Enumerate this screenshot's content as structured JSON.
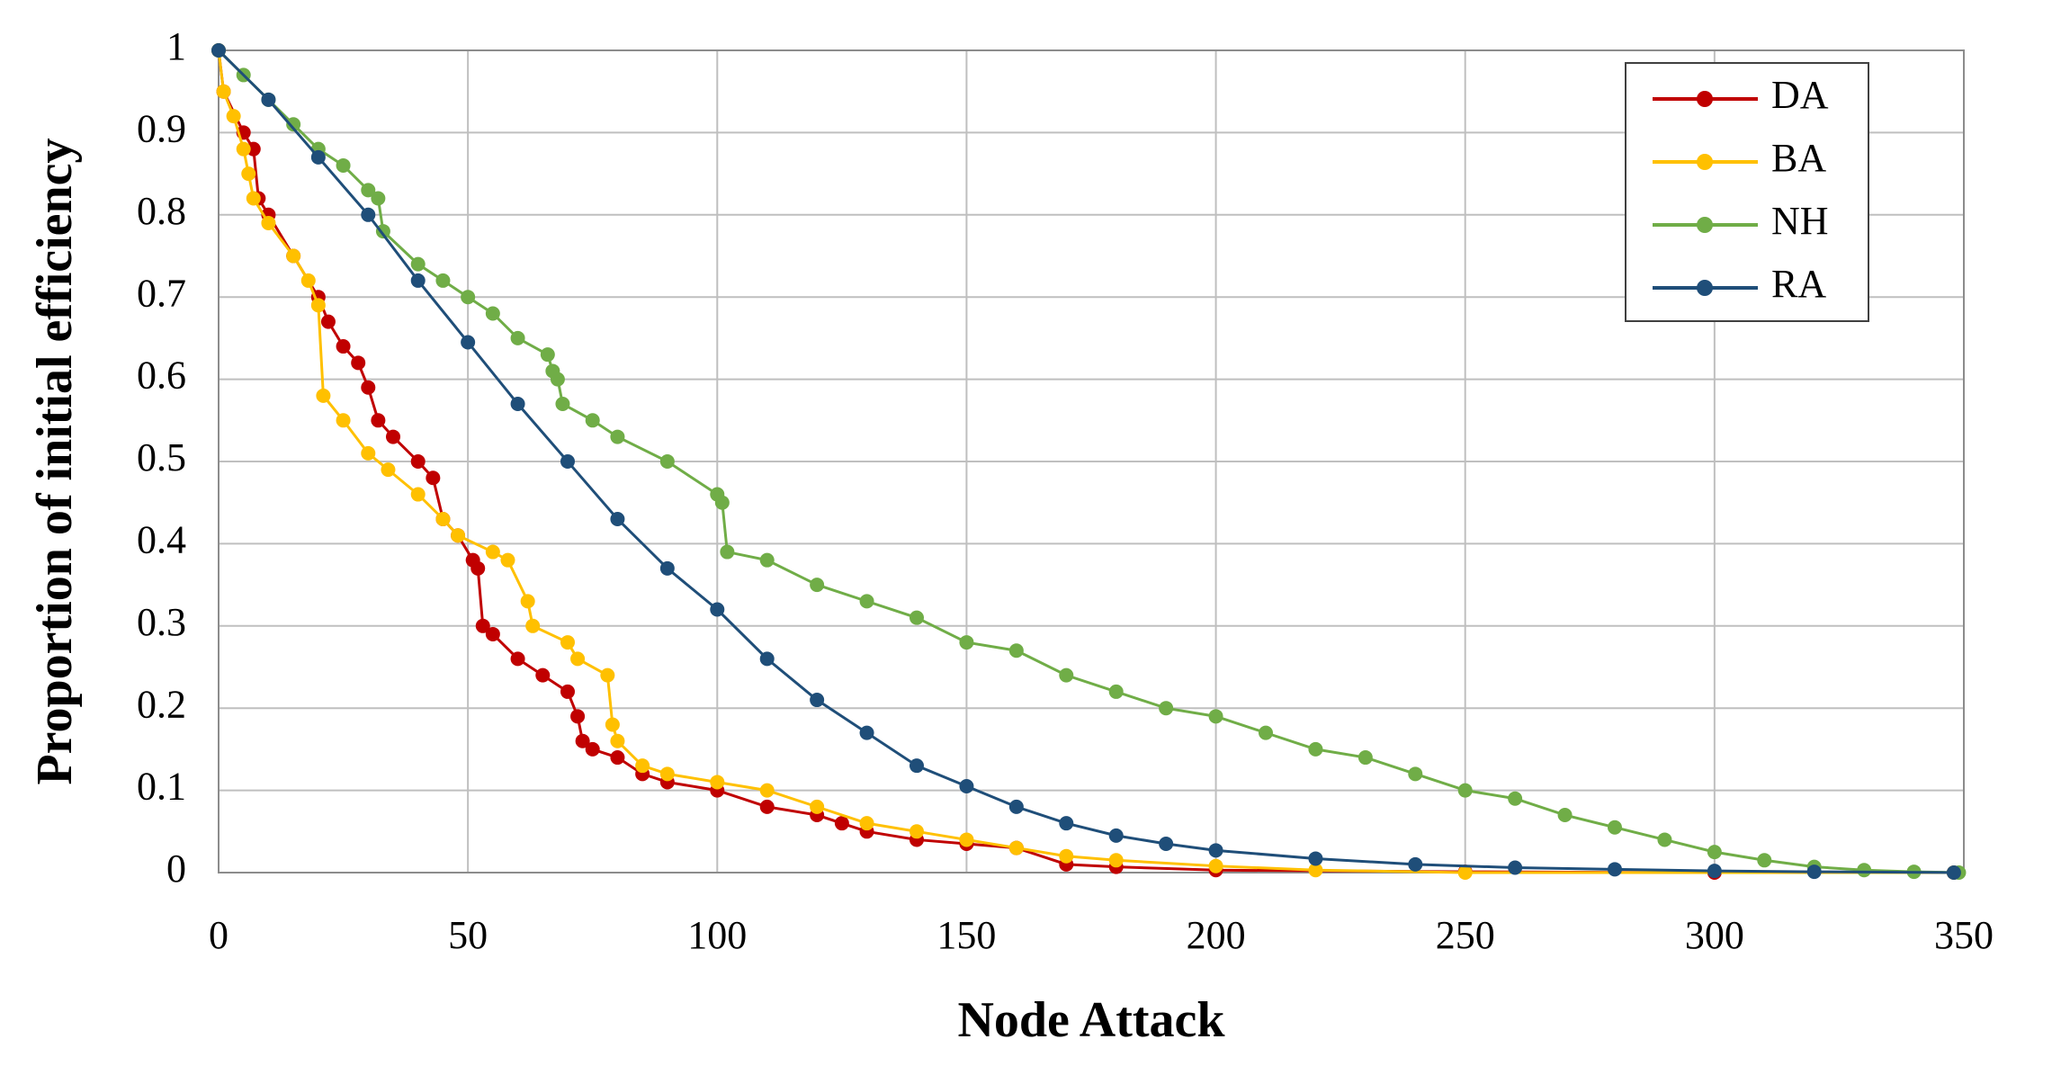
{
  "chart_data": {
    "type": "line",
    "x_label": "Node Attack",
    "y_label": "Proportion of initial efficiency",
    "xlim": [
      0,
      350
    ],
    "xticks": [
      0,
      50,
      100,
      150,
      200,
      250,
      300,
      350
    ],
    "ylim": [
      0,
      1
    ],
    "yticks": [
      0,
      0.1,
      0.2,
      0.3,
      0.4,
      0.5,
      0.6,
      0.7,
      0.8,
      0.9,
      1
    ],
    "grid": true,
    "legend": "upper right",
    "series": [
      {
        "name": "DA",
        "color": "#c00000",
        "x": [
          0,
          1,
          5,
          7,
          8,
          10,
          15,
          20,
          22,
          25,
          28,
          30,
          32,
          35,
          40,
          43,
          45,
          48,
          51,
          52,
          53,
          55,
          60,
          65,
          70,
          72,
          73,
          75,
          80,
          85,
          90,
          100,
          110,
          120,
          125,
          130,
          140,
          150,
          160,
          170,
          180,
          200,
          250,
          300,
          348
        ],
        "values": [
          1,
          0.95,
          0.9,
          0.88,
          0.82,
          0.8,
          0.75,
          0.7,
          0.67,
          0.64,
          0.62,
          0.59,
          0.55,
          0.53,
          0.5,
          0.48,
          0.43,
          0.41,
          0.38,
          0.37,
          0.3,
          0.29,
          0.26,
          0.24,
          0.22,
          0.19,
          0.16,
          0.15,
          0.14,
          0.12,
          0.11,
          0.1,
          0.08,
          0.07,
          0.06,
          0.05,
          0.04,
          0.035,
          0.03,
          0.01,
          0.007,
          0.003,
          0.001,
          0,
          0
        ]
      },
      {
        "name": "BA",
        "color": "#ffc000",
        "x": [
          0,
          1,
          3,
          5,
          6,
          7,
          10,
          15,
          18,
          20,
          21,
          25,
          30,
          34,
          40,
          45,
          48,
          55,
          58,
          62,
          63,
          70,
          72,
          78,
          79,
          80,
          85,
          90,
          100,
          110,
          120,
          130,
          140,
          150,
          160,
          170,
          180,
          200,
          220,
          250,
          348
        ],
        "values": [
          1,
          0.95,
          0.92,
          0.88,
          0.85,
          0.82,
          0.79,
          0.75,
          0.72,
          0.69,
          0.58,
          0.55,
          0.51,
          0.49,
          0.46,
          0.43,
          0.41,
          0.39,
          0.38,
          0.33,
          0.3,
          0.28,
          0.26,
          0.24,
          0.18,
          0.16,
          0.13,
          0.12,
          0.11,
          0.1,
          0.08,
          0.06,
          0.05,
          0.04,
          0.03,
          0.02,
          0.015,
          0.008,
          0.003,
          0,
          0
        ]
      },
      {
        "name": "NH",
        "color": "#70ad47",
        "x": [
          0,
          5,
          10,
          15,
          20,
          25,
          30,
          32,
          33,
          40,
          45,
          50,
          55,
          60,
          66,
          67,
          68,
          69,
          75,
          80,
          90,
          100,
          101,
          102,
          110,
          120,
          130,
          140,
          150,
          160,
          170,
          180,
          190,
          200,
          210,
          220,
          230,
          240,
          250,
          260,
          270,
          280,
          290,
          300,
          310,
          320,
          330,
          340,
          349
        ],
        "values": [
          1,
          0.97,
          0.94,
          0.91,
          0.88,
          0.86,
          0.83,
          0.82,
          0.78,
          0.74,
          0.72,
          0.7,
          0.68,
          0.65,
          0.63,
          0.61,
          0.6,
          0.57,
          0.55,
          0.53,
          0.5,
          0.46,
          0.45,
          0.39,
          0.38,
          0.35,
          0.33,
          0.31,
          0.28,
          0.27,
          0.24,
          0.22,
          0.2,
          0.19,
          0.17,
          0.15,
          0.14,
          0.12,
          0.1,
          0.09,
          0.07,
          0.055,
          0.04,
          0.025,
          0.015,
          0.007,
          0.003,
          0.001,
          0
        ]
      },
      {
        "name": "RA",
        "color": "#1f4e79",
        "x": [
          0,
          10,
          20,
          30,
          40,
          50,
          60,
          70,
          80,
          90,
          100,
          110,
          120,
          130,
          140,
          150,
          160,
          170,
          180,
          190,
          200,
          220,
          240,
          260,
          280,
          300,
          320,
          348
        ],
        "values": [
          1,
          0.94,
          0.87,
          0.8,
          0.72,
          0.645,
          0.57,
          0.5,
          0.43,
          0.37,
          0.32,
          0.26,
          0.21,
          0.17,
          0.13,
          0.105,
          0.08,
          0.06,
          0.045,
          0.035,
          0.027,
          0.017,
          0.01,
          0.006,
          0.004,
          0.002,
          0.001,
          0
        ]
      }
    ]
  }
}
